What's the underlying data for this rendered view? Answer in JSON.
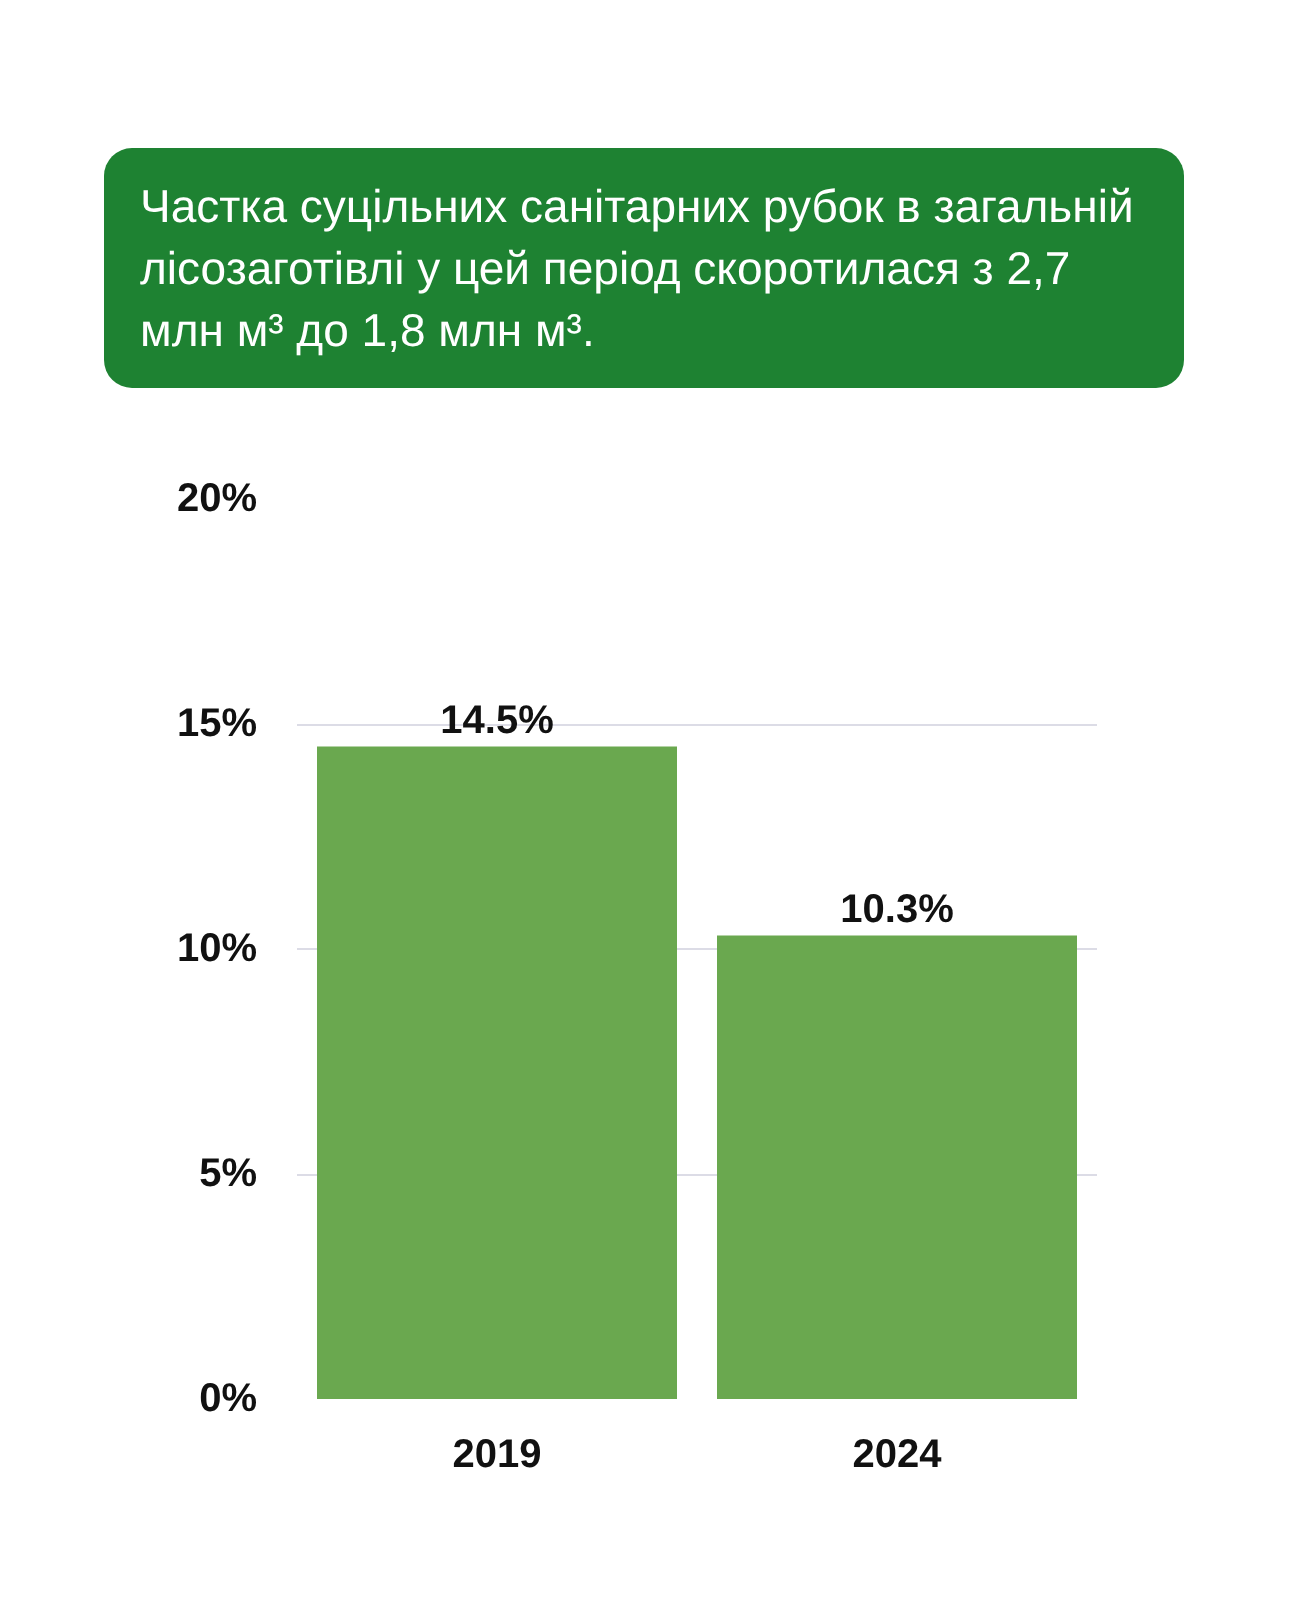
{
  "chart_data": {
    "type": "bar",
    "title": "Частка суцільних санітарних рубок в загальній лісозаготівлі  у цей період скоротилася з 2,7 млн м³ до 1,8 млн м³.",
    "categories": [
      "2019",
      "2024"
    ],
    "values": [
      14.5,
      10.3
    ],
    "color": "#6aa84f",
    "value_labels": [
      "14.5%",
      "10.3%"
    ],
    "ylim": [
      0,
      20
    ],
    "yticks": [
      {
        "value": 0,
        "label": "0%"
      },
      {
        "value": 5,
        "label": "5%"
      },
      {
        "value": 10,
        "label": "10%"
      },
      {
        "value": 15,
        "label": "15%"
      },
      {
        "value": 20,
        "label": "20%"
      }
    ],
    "grid": "y"
  }
}
